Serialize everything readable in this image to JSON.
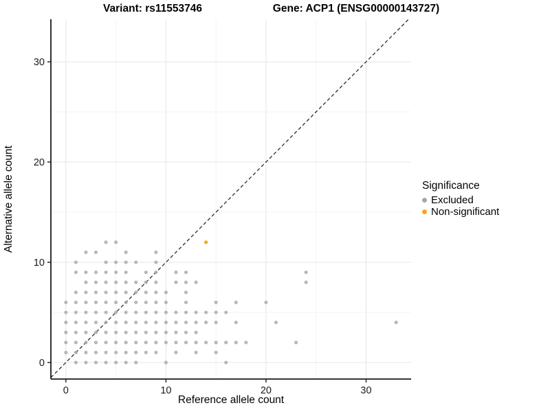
{
  "chart_data": {
    "type": "scatter",
    "title_left": "Variant: rs11553746",
    "title_right": "Gene: ACP1 (ENSG00000143727)",
    "xlabel": "Reference allele count",
    "ylabel": "Alternative allele count",
    "legend_title": "Significance",
    "legend_position": "right",
    "grid": "on",
    "xlim": [
      -1.5,
      34.5
    ],
    "ylim": [
      -1.65,
      34.25
    ],
    "x_ticks": [
      0,
      10,
      20,
      30
    ],
    "y_ticks": [
      0,
      10,
      20,
      30
    ],
    "x_minor": [
      5,
      15,
      25
    ],
    "y_minor": [
      5,
      15,
      25
    ],
    "identity_line": {
      "slope": 1,
      "intercept": 0,
      "dashed": true,
      "color": "#1a1a1a"
    },
    "series": [
      {
        "name": "Excluded",
        "color": "#a6a6a6",
        "opacity": 0.8,
        "points": [
          [
            1,
            0
          ],
          [
            2,
            0
          ],
          [
            3,
            0
          ],
          [
            4,
            0
          ],
          [
            5,
            0
          ],
          [
            6,
            0
          ],
          [
            7,
            0
          ],
          [
            10,
            0
          ],
          [
            16,
            0
          ],
          [
            0,
            1
          ],
          [
            1,
            1
          ],
          [
            2,
            1
          ],
          [
            3,
            1
          ],
          [
            4,
            1
          ],
          [
            5,
            1
          ],
          [
            6,
            1
          ],
          [
            7,
            1
          ],
          [
            8,
            1
          ],
          [
            9,
            1
          ],
          [
            11,
            1
          ],
          [
            13,
            1
          ],
          [
            15,
            1
          ],
          [
            0,
            2
          ],
          [
            1,
            2
          ],
          [
            2,
            2
          ],
          [
            3,
            2
          ],
          [
            4,
            2
          ],
          [
            5,
            2
          ],
          [
            6,
            2
          ],
          [
            7,
            2
          ],
          [
            8,
            2
          ],
          [
            9,
            2
          ],
          [
            10,
            2
          ],
          [
            11,
            2
          ],
          [
            12,
            2
          ],
          [
            13,
            2
          ],
          [
            14,
            2
          ],
          [
            15,
            2
          ],
          [
            16,
            2
          ],
          [
            17,
            2
          ],
          [
            18,
            2
          ],
          [
            23,
            2
          ],
          [
            0,
            3
          ],
          [
            1,
            3
          ],
          [
            2,
            3
          ],
          [
            3,
            3
          ],
          [
            4,
            3
          ],
          [
            5,
            3
          ],
          [
            6,
            3
          ],
          [
            7,
            3
          ],
          [
            8,
            3
          ],
          [
            9,
            3
          ],
          [
            10,
            3
          ],
          [
            11,
            3
          ],
          [
            12,
            3
          ],
          [
            13,
            3
          ],
          [
            0,
            4
          ],
          [
            1,
            4
          ],
          [
            2,
            4
          ],
          [
            3,
            4
          ],
          [
            4,
            4
          ],
          [
            5,
            4
          ],
          [
            6,
            4
          ],
          [
            7,
            4
          ],
          [
            8,
            4
          ],
          [
            9,
            4
          ],
          [
            10,
            4
          ],
          [
            11,
            4
          ],
          [
            12,
            4
          ],
          [
            13,
            4
          ],
          [
            14,
            4
          ],
          [
            15,
            4
          ],
          [
            17,
            4
          ],
          [
            21,
            4
          ],
          [
            33,
            4
          ],
          [
            0,
            5
          ],
          [
            1,
            5
          ],
          [
            2,
            5
          ],
          [
            3,
            5
          ],
          [
            4,
            5
          ],
          [
            5,
            5
          ],
          [
            6,
            5
          ],
          [
            7,
            5
          ],
          [
            8,
            5
          ],
          [
            9,
            5
          ],
          [
            10,
            5
          ],
          [
            11,
            5
          ],
          [
            12,
            5
          ],
          [
            13,
            5
          ],
          [
            14,
            5
          ],
          [
            15,
            5
          ],
          [
            16,
            5
          ],
          [
            0,
            6
          ],
          [
            1,
            6
          ],
          [
            2,
            6
          ],
          [
            3,
            6
          ],
          [
            4,
            6
          ],
          [
            5,
            6
          ],
          [
            6,
            6
          ],
          [
            7,
            6
          ],
          [
            8,
            6
          ],
          [
            9,
            6
          ],
          [
            10,
            6
          ],
          [
            12,
            6
          ],
          [
            15,
            6
          ],
          [
            17,
            6
          ],
          [
            20,
            6
          ],
          [
            1,
            7
          ],
          [
            2,
            7
          ],
          [
            3,
            7
          ],
          [
            4,
            7
          ],
          [
            5,
            7
          ],
          [
            6,
            7
          ],
          [
            7,
            7
          ],
          [
            8,
            7
          ],
          [
            9,
            7
          ],
          [
            10,
            7
          ],
          [
            12,
            7
          ],
          [
            2,
            8
          ],
          [
            3,
            8
          ],
          [
            4,
            8
          ],
          [
            5,
            8
          ],
          [
            6,
            8
          ],
          [
            7,
            8
          ],
          [
            8,
            8
          ],
          [
            9,
            8
          ],
          [
            11,
            8
          ],
          [
            12,
            8
          ],
          [
            13,
            8
          ],
          [
            24,
            8
          ],
          [
            1,
            9
          ],
          [
            2,
            9
          ],
          [
            3,
            9
          ],
          [
            4,
            9
          ],
          [
            5,
            9
          ],
          [
            6,
            9
          ],
          [
            8,
            9
          ],
          [
            9,
            9
          ],
          [
            11,
            9
          ],
          [
            12,
            9
          ],
          [
            24,
            9
          ],
          [
            1,
            10
          ],
          [
            4,
            10
          ],
          [
            5,
            10
          ],
          [
            6,
            10
          ],
          [
            7,
            10
          ],
          [
            9,
            10
          ],
          [
            2,
            11
          ],
          [
            3,
            11
          ],
          [
            6,
            11
          ],
          [
            9,
            11
          ],
          [
            4,
            12
          ],
          [
            5,
            12
          ]
        ]
      },
      {
        "name": "Non-significant",
        "color": "#ffa51b",
        "opacity": 1,
        "points": [
          [
            14,
            12
          ]
        ]
      }
    ]
  },
  "style": {
    "axis_color": "#1a1a1a",
    "tick_label_color": "#1a1a1a",
    "grid_major_color": "#e6e6e6",
    "grid_minor_color": "#f3f3f3",
    "point_radius": 2.6
  }
}
